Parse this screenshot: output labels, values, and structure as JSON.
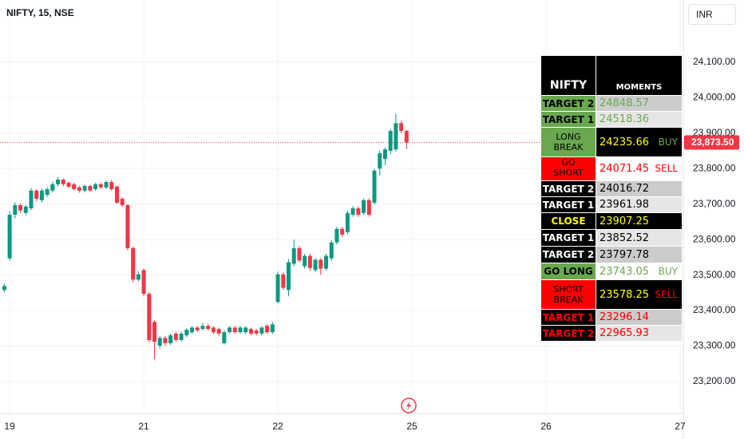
{
  "chart_data": {
    "type": "candlestick",
    "title": "NIFTY, 15, NSE",
    "currency": "INR",
    "up_color": "#089981",
    "down_color": "#f23645",
    "grid": true,
    "x": [
      -1,
      0,
      1,
      2,
      3,
      4,
      5,
      6,
      7,
      8,
      9,
      10,
      11,
      12,
      13,
      14,
      15,
      16,
      17,
      18,
      19,
      20,
      21,
      22,
      23,
      24,
      25,
      26,
      27,
      28,
      29,
      30,
      31,
      32,
      33,
      34,
      35,
      36,
      37,
      38,
      39,
      40,
      41,
      42,
      43,
      44,
      45,
      46,
      47,
      48,
      49,
      50,
      51,
      52,
      53,
      54,
      55,
      56,
      57,
      58,
      59,
      60,
      61,
      62,
      63,
      64,
      65,
      66,
      67,
      68,
      69,
      70,
      71,
      72,
      73,
      74
    ],
    "open": [
      23458,
      23547,
      23670,
      23697,
      23675,
      23688,
      23738,
      23711,
      23726,
      23738,
      23756,
      23769,
      23760,
      23756,
      23747,
      23738,
      23751,
      23742,
      23756,
      23747,
      23762,
      23749,
      23715,
      23697,
      23576,
      23487,
      23514,
      23447,
      23368,
      23301,
      23323,
      23308,
      23335,
      23317,
      23330,
      23339,
      23352,
      23348,
      23357,
      23352,
      23348,
      23308,
      23339,
      23352,
      23339,
      23339,
      23348,
      23344,
      23335,
      23357,
      23339,
      23424,
      23502,
      23458,
      23532,
      23576,
      23525,
      23554,
      23514,
      23543,
      23518,
      23547,
      23592,
      23630,
      23621,
      23670,
      23688,
      23675,
      23711,
      23704,
      23800,
      23827,
      23850,
      23854,
      23928,
      23906
    ],
    "high": [
      23475,
      23680,
      23705,
      23702,
      23698,
      23745,
      23742,
      23744,
      23748,
      23762,
      23776,
      23772,
      23764,
      23760,
      23751,
      23755,
      23755,
      23760,
      23760,
      23766,
      23768,
      23752,
      23719,
      23700,
      23580,
      23510,
      23518,
      23452,
      23372,
      23328,
      23328,
      23335,
      23340,
      23340,
      23350,
      23356,
      23356,
      23365,
      23362,
      23356,
      23352,
      23344,
      23356,
      23356,
      23357,
      23356,
      23352,
      23348,
      23356,
      23362,
      23368,
      23510,
      23508,
      23545,
      23600,
      23582,
      23560,
      23560,
      23548,
      23548,
      23560,
      23598,
      23636,
      23636,
      23682,
      23694,
      23694,
      23716,
      23716,
      23800,
      23850,
      23860,
      23912,
      23955,
      23935,
      23910
    ],
    "low": [
      23452,
      23540,
      23660,
      23675,
      23668,
      23683,
      23708,
      23705,
      23720,
      23733,
      23750,
      23750,
      23744,
      23738,
      23732,
      23733,
      23734,
      23738,
      23742,
      23743,
      23738,
      23700,
      23692,
      23570,
      23480,
      23482,
      23440,
      23310,
      23263,
      23292,
      23300,
      23303,
      23312,
      23312,
      23325,
      23334,
      23340,
      23344,
      23344,
      23334,
      23330,
      23304,
      23335,
      23334,
      23335,
      23334,
      23330,
      23330,
      23330,
      23334,
      23334,
      23420,
      23458,
      23440,
      23525,
      23536,
      23518,
      23512,
      23508,
      23500,
      23512,
      23540,
      23586,
      23608,
      23615,
      23664,
      23664,
      23670,
      23665,
      23698,
      23780,
      23810,
      23840,
      23848,
      23900,
      23855
    ],
    "close": [
      23469,
      23670,
      23697,
      23682,
      23693,
      23738,
      23715,
      23738,
      23742,
      23756,
      23769,
      23756,
      23749,
      23742,
      23738,
      23751,
      23738,
      23756,
      23747,
      23762,
      23742,
      23704,
      23697,
      23576,
      23487,
      23502,
      23447,
      23317,
      23312,
      23323,
      23308,
      23330,
      23317,
      23335,
      23346,
      23352,
      23344,
      23357,
      23348,
      23339,
      23335,
      23339,
      23352,
      23339,
      23352,
      23352,
      23335,
      23335,
      23352,
      23339,
      23361,
      23502,
      23464,
      23536,
      23576,
      23541,
      23554,
      23520,
      23543,
      23518,
      23554,
      23592,
      23630,
      23614,
      23675,
      23688,
      23670,
      23711,
      23670,
      23794,
      23843,
      23854,
      23906,
      23928,
      23906,
      23873.5
    ],
    "last_price": {
      "value": 23873.5,
      "label": "23,873.50"
    },
    "xlim": [
      -1.8,
      125.6
    ],
    "xticks": [
      {
        "value": 0,
        "label": "19"
      },
      {
        "value": 25,
        "label": "21"
      },
      {
        "value": 50,
        "label": "22"
      },
      {
        "value": 75,
        "label": "25"
      },
      {
        "value": 100,
        "label": "26"
      },
      {
        "value": 125,
        "label": "27"
      }
    ],
    "ylim": [
      23110,
      24275
    ],
    "yticks": [
      {
        "value": 23200,
        "label": "23,200.00"
      },
      {
        "value": 23300,
        "label": "23,300.00"
      },
      {
        "value": 23400,
        "label": "23,400.00"
      },
      {
        "value": 23500,
        "label": "23,500.00"
      },
      {
        "value": 23600,
        "label": "23,600.00"
      },
      {
        "value": 23700,
        "label": "23,700.00"
      },
      {
        "value": 23800,
        "label": "23,800.00"
      },
      {
        "value": 23900,
        "label": "23,900.00"
      },
      {
        "value": 24000,
        "label": "24,000.00"
      },
      {
        "value": 24100,
        "label": "24,100.00"
      }
    ]
  },
  "table": {
    "header": [
      "NIFTY",
      "MOMENTS"
    ],
    "rows": [
      {
        "label": "TARGET 2",
        "value": "24848.57",
        "label_bg": "#6aa84f",
        "label_color": "#000000",
        "value_bg": "#cccccc",
        "value_color": "#6aa84f"
      },
      {
        "label": "TARGET 1",
        "value": "24518.36",
        "label_bg": "#6aa84f",
        "label_color": "#000000",
        "value_bg": "#e6e6e6",
        "value_color": "#6aa84f"
      },
      {
        "label": "LONG BREAK",
        "value": "24235.66",
        "signal": "BUY",
        "label_bg": "#6aa84f",
        "label_color": "#000000",
        "value_bg": "#000000",
        "value_color": "#ffff00",
        "signal_color": "#6aa84f"
      },
      {
        "label": "GO SHORT",
        "value": "24071.45",
        "signal": "SELL",
        "label_bg": "#ff0000",
        "label_color": "#000000",
        "value_bg": "#ffffff",
        "value_color": "#ff0000",
        "signal_color": "#ff0000"
      },
      {
        "label": "TARGET 2",
        "value": "24016.72",
        "label_bg": "#000000",
        "label_color": "#ffffff",
        "value_bg": "#cccccc",
        "value_color": "#000000"
      },
      {
        "label": "TARGET 1",
        "value": "23961.98",
        "label_bg": "#000000",
        "label_color": "#ffffff",
        "value_bg": "#e6e6e6",
        "value_color": "#000000"
      },
      {
        "label": "CLOSE",
        "value": "23907.25",
        "label_bg": "#000000",
        "label_color": "#ffff00",
        "value_bg": "#000000",
        "value_color": "#ffff00"
      },
      {
        "label": "TARGET 1",
        "value": "23852.52",
        "label_bg": "#000000",
        "label_color": "#ffffff",
        "value_bg": "#e6e6e6",
        "value_color": "#000000"
      },
      {
        "label": "TARGET 2",
        "value": "23797.78",
        "label_bg": "#000000",
        "label_color": "#ffffff",
        "value_bg": "#cccccc",
        "value_color": "#000000"
      },
      {
        "label": "GO LONG",
        "value": "23743.05",
        "signal": "BUY",
        "label_bg": "#6aa84f",
        "label_color": "#000000",
        "value_bg": "#ffffff",
        "value_color": "#6aa84f",
        "signal_color": "#6aa84f"
      },
      {
        "label": "SHORT BREAK",
        "value": "23578.25",
        "signal": "SELL",
        "label_bg": "#ff0000",
        "label_color": "#000000",
        "value_bg": "#000000",
        "value_color": "#ffff00",
        "signal_color": "#ff0000"
      },
      {
        "label": "TARGET 1",
        "value": "23296.14",
        "label_bg": "#000000",
        "label_color": "#ff0000",
        "value_bg": "#cccccc",
        "value_color": "#ff0000"
      },
      {
        "label": "TARGET 2",
        "value": "22965.93",
        "label_bg": "#000000",
        "label_color": "#ff0000",
        "value_bg": "#e6e6e6",
        "value_color": "#ff0000"
      }
    ]
  }
}
